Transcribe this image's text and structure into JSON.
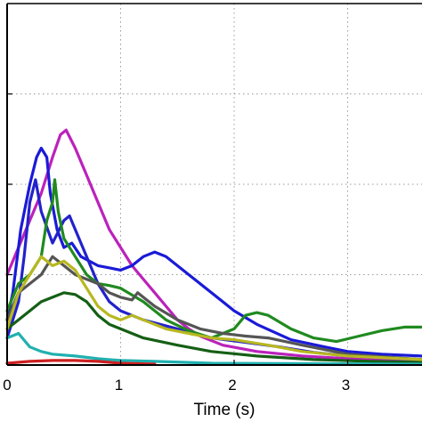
{
  "chart_data": {
    "type": "line",
    "title": "",
    "xlabel": "Time (s)",
    "ylabel": "",
    "xlim": [
      0,
      3.65
    ],
    "ylim": [
      0,
      4
    ],
    "x_ticks": [
      0,
      1,
      2,
      3
    ],
    "x_tick_labels": [
      "0",
      "1",
      "2",
      "3"
    ],
    "y_ticks": [
      1,
      2,
      3
    ],
    "grid": true,
    "series": [
      {
        "color": "#bb22bb",
        "points": [
          [
            0,
            1.0
          ],
          [
            0.1,
            1.3
          ],
          [
            0.2,
            1.6
          ],
          [
            0.3,
            1.9
          ],
          [
            0.4,
            2.3
          ],
          [
            0.47,
            2.55
          ],
          [
            0.52,
            2.6
          ],
          [
            0.6,
            2.4
          ],
          [
            0.7,
            2.1
          ],
          [
            0.8,
            1.8
          ],
          [
            0.9,
            1.5
          ],
          [
            1.0,
            1.3
          ],
          [
            1.1,
            1.1
          ],
          [
            1.2,
            0.95
          ],
          [
            1.3,
            0.8
          ],
          [
            1.4,
            0.65
          ],
          [
            1.5,
            0.5
          ],
          [
            1.6,
            0.4
          ],
          [
            1.7,
            0.32
          ],
          [
            1.9,
            0.22
          ],
          [
            2.2,
            0.15
          ],
          [
            2.6,
            0.1
          ],
          [
            3.0,
            0.07
          ],
          [
            3.65,
            0.04
          ]
        ]
      },
      {
        "color": "#1a1ad8",
        "points": [
          [
            0,
            0.5
          ],
          [
            0.05,
            0.8
          ],
          [
            0.12,
            1.5
          ],
          [
            0.2,
            2.0
          ],
          [
            0.26,
            2.3
          ],
          [
            0.3,
            2.4
          ],
          [
            0.35,
            2.3
          ],
          [
            0.38,
            1.9
          ],
          [
            0.44,
            1.5
          ],
          [
            0.5,
            1.3
          ],
          [
            0.57,
            1.35
          ],
          [
            0.65,
            1.2
          ],
          [
            0.8,
            1.1
          ],
          [
            1.0,
            1.05
          ],
          [
            1.1,
            1.1
          ],
          [
            1.2,
            1.2
          ],
          [
            1.3,
            1.25
          ],
          [
            1.4,
            1.2
          ],
          [
            1.6,
            1.0
          ],
          [
            1.8,
            0.8
          ],
          [
            2.0,
            0.6
          ],
          [
            2.2,
            0.45
          ],
          [
            2.5,
            0.28
          ],
          [
            2.8,
            0.2
          ],
          [
            3.0,
            0.15
          ],
          [
            3.3,
            0.12
          ],
          [
            3.65,
            0.1
          ]
        ]
      },
      {
        "color": "#2222cc",
        "points": [
          [
            0,
            0.3
          ],
          [
            0.1,
            0.7
          ],
          [
            0.15,
            1.2
          ],
          [
            0.2,
            1.8
          ],
          [
            0.25,
            2.05
          ],
          [
            0.3,
            1.7
          ],
          [
            0.4,
            1.35
          ],
          [
            0.5,
            1.6
          ],
          [
            0.55,
            1.65
          ],
          [
            0.6,
            1.5
          ],
          [
            0.7,
            1.2
          ],
          [
            0.8,
            0.9
          ],
          [
            0.9,
            0.7
          ],
          [
            1.0,
            0.6
          ],
          [
            1.2,
            0.5
          ],
          [
            1.5,
            0.4
          ],
          [
            1.8,
            0.3
          ],
          [
            2.1,
            0.25
          ],
          [
            2.4,
            0.2
          ],
          [
            2.7,
            0.14
          ],
          [
            3.0,
            0.1
          ],
          [
            3.65,
            0.06
          ]
        ]
      },
      {
        "color": "#208a20",
        "points": [
          [
            0,
            0.6
          ],
          [
            0.1,
            0.9
          ],
          [
            0.2,
            1.0
          ],
          [
            0.3,
            1.2
          ],
          [
            0.35,
            1.6
          ],
          [
            0.4,
            1.8
          ],
          [
            0.42,
            2.05
          ],
          [
            0.45,
            1.7
          ],
          [
            0.5,
            1.4
          ],
          [
            0.6,
            1.2
          ],
          [
            0.7,
            1.0
          ],
          [
            0.8,
            0.9
          ],
          [
            0.9,
            0.88
          ],
          [
            1.0,
            0.85
          ],
          [
            1.2,
            0.7
          ],
          [
            1.4,
            0.5
          ],
          [
            1.6,
            0.38
          ],
          [
            1.8,
            0.3
          ],
          [
            2.0,
            0.4
          ],
          [
            2.1,
            0.55
          ],
          [
            2.2,
            0.58
          ],
          [
            2.3,
            0.55
          ],
          [
            2.5,
            0.4
          ],
          [
            2.7,
            0.3
          ],
          [
            2.9,
            0.26
          ],
          [
            3.1,
            0.32
          ],
          [
            3.3,
            0.38
          ],
          [
            3.5,
            0.42
          ],
          [
            3.65,
            0.42
          ]
        ]
      },
      {
        "color": "#155f15",
        "points": [
          [
            0,
            0.4
          ],
          [
            0.1,
            0.5
          ],
          [
            0.2,
            0.6
          ],
          [
            0.3,
            0.7
          ],
          [
            0.4,
            0.75
          ],
          [
            0.5,
            0.8
          ],
          [
            0.6,
            0.78
          ],
          [
            0.7,
            0.7
          ],
          [
            0.8,
            0.55
          ],
          [
            0.9,
            0.45
          ],
          [
            1.0,
            0.4
          ],
          [
            1.2,
            0.3
          ],
          [
            1.5,
            0.22
          ],
          [
            1.8,
            0.15
          ],
          [
            2.2,
            0.1
          ],
          [
            2.7,
            0.06
          ],
          [
            3.2,
            0.04
          ],
          [
            3.65,
            0.03
          ]
        ]
      },
      {
        "color": "#555555",
        "points": [
          [
            0,
            0.5
          ],
          [
            0.1,
            0.8
          ],
          [
            0.2,
            0.9
          ],
          [
            0.3,
            1.0
          ],
          [
            0.4,
            1.2
          ],
          [
            0.5,
            1.1
          ],
          [
            0.6,
            1.0
          ],
          [
            0.7,
            0.95
          ],
          [
            0.8,
            0.9
          ],
          [
            0.9,
            0.8
          ],
          [
            1.0,
            0.75
          ],
          [
            1.1,
            0.72
          ],
          [
            1.15,
            0.8
          ],
          [
            1.2,
            0.75
          ],
          [
            1.3,
            0.65
          ],
          [
            1.5,
            0.5
          ],
          [
            1.7,
            0.4
          ],
          [
            1.9,
            0.35
          ],
          [
            2.1,
            0.32
          ],
          [
            2.3,
            0.3
          ],
          [
            2.6,
            0.22
          ],
          [
            3.0,
            0.12
          ],
          [
            3.65,
            0.06
          ]
        ]
      },
      {
        "color": "#b8b820",
        "points": [
          [
            0,
            0.4
          ],
          [
            0.1,
            0.8
          ],
          [
            0.2,
            1.0
          ],
          [
            0.3,
            1.2
          ],
          [
            0.4,
            1.1
          ],
          [
            0.5,
            1.15
          ],
          [
            0.6,
            1.05
          ],
          [
            0.7,
            0.85
          ],
          [
            0.8,
            0.65
          ],
          [
            0.9,
            0.55
          ],
          [
            1.0,
            0.5
          ],
          [
            1.1,
            0.55
          ],
          [
            1.2,
            0.5
          ],
          [
            1.4,
            0.4
          ],
          [
            1.6,
            0.35
          ],
          [
            1.8,
            0.3
          ],
          [
            2.0,
            0.28
          ],
          [
            2.3,
            0.22
          ],
          [
            2.6,
            0.15
          ],
          [
            3.0,
            0.1
          ],
          [
            3.65,
            0.06
          ]
        ]
      },
      {
        "color": "#20b0b0",
        "points": [
          [
            0,
            0.3
          ],
          [
            0.1,
            0.35
          ],
          [
            0.2,
            0.2
          ],
          [
            0.3,
            0.15
          ],
          [
            0.4,
            0.12
          ],
          [
            0.6,
            0.1
          ],
          [
            0.8,
            0.07
          ],
          [
            1.0,
            0.05
          ],
          [
            1.3,
            0.04
          ],
          [
            1.8,
            0.02
          ],
          [
            3.65,
            0.01
          ]
        ]
      },
      {
        "color": "#cc2020",
        "points": [
          [
            0,
            0.02
          ],
          [
            0.2,
            0.04
          ],
          [
            0.4,
            0.05
          ],
          [
            0.6,
            0.05
          ],
          [
            0.8,
            0.04
          ],
          [
            1.0,
            0.02
          ],
          [
            1.3,
            0.01
          ]
        ]
      }
    ]
  }
}
